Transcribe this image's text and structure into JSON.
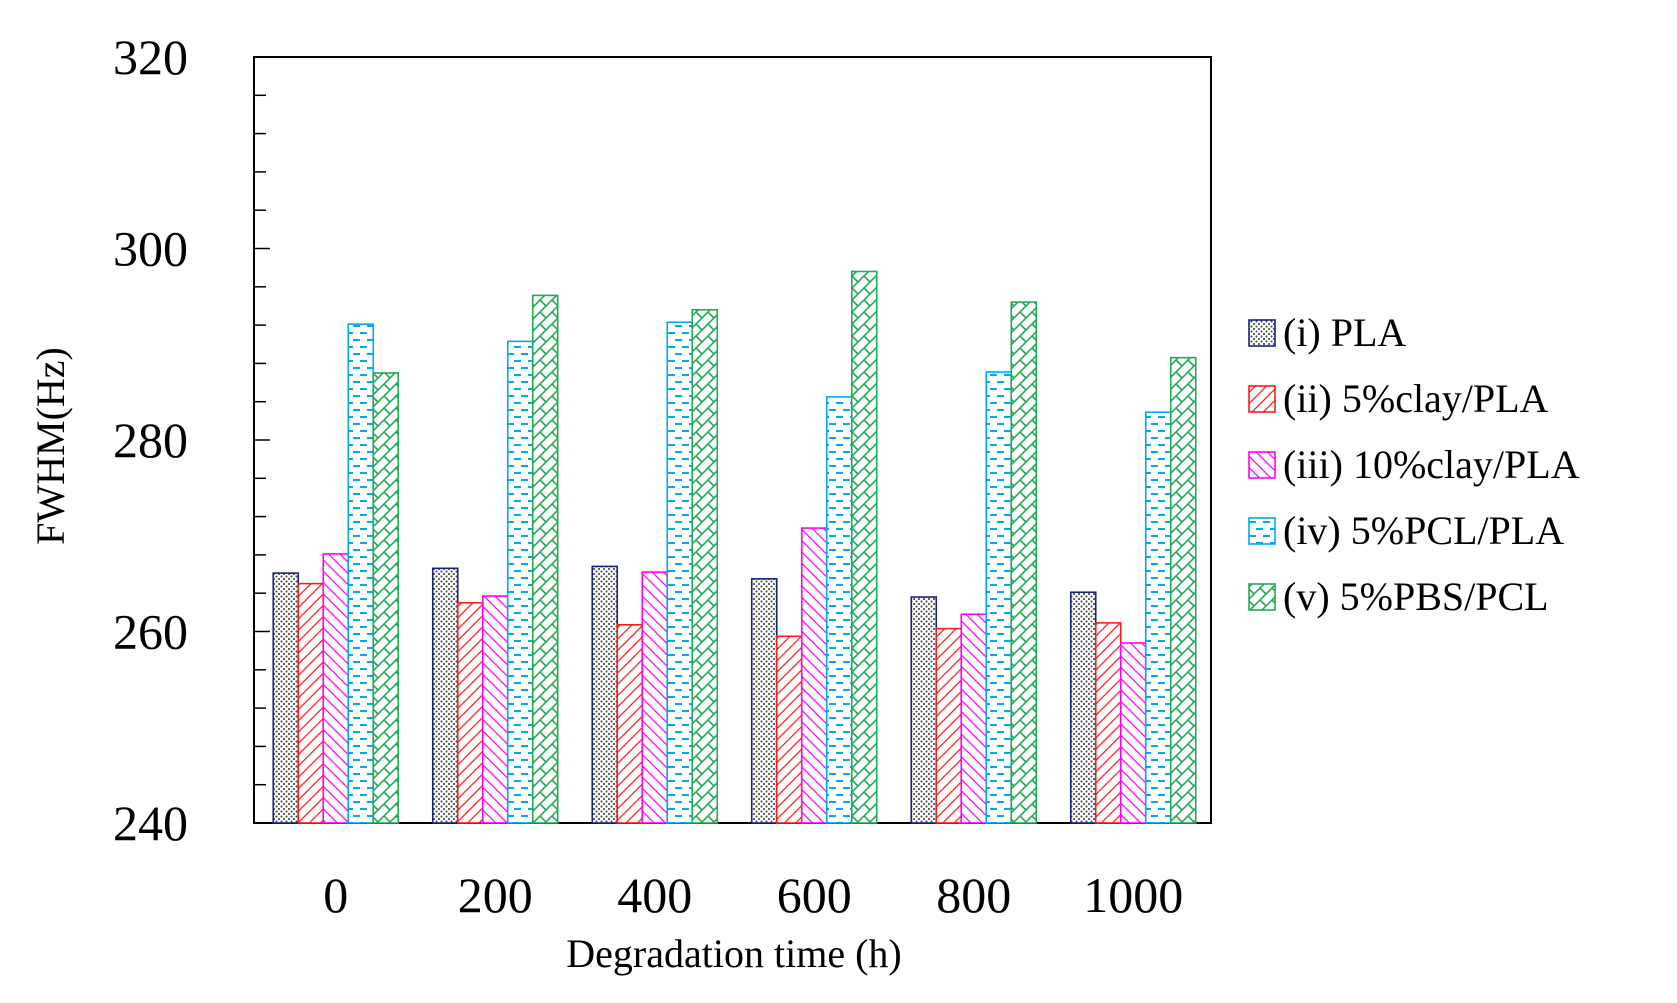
{
  "chart_data": {
    "type": "bar",
    "title": "",
    "xlabel": "Degradation time (h)",
    "ylabel": "FWHM(Hz)",
    "ylim": [
      240,
      320
    ],
    "yticks": [
      "240",
      "260",
      "280",
      "300",
      "320"
    ],
    "grid": false,
    "legend_position": "right",
    "categories": [
      "0",
      "200",
      "400",
      "600",
      "800",
      "1000"
    ],
    "series": [
      {
        "name": "(i) PLA",
        "color": "#1a237e",
        "pattern": "dots",
        "values": [
          266.1,
          266.6,
          266.8,
          265.5,
          263.6,
          264.1
        ]
      },
      {
        "name": "(ii) 5%clay/PLA",
        "color": "#ff1a1a",
        "pattern": "diagonal-right",
        "values": [
          265.0,
          263.0,
          260.7,
          259.5,
          260.3,
          260.9
        ]
      },
      {
        "name": "(iii) 10%clay/PLA",
        "color": "#ff00ff",
        "pattern": "diagonal-left",
        "values": [
          268.1,
          263.7,
          266.2,
          270.8,
          261.8,
          258.8
        ]
      },
      {
        "name": "(iv) 5%PCL/PLA",
        "color": "#00aaee",
        "pattern": "dashes",
        "values": [
          292.1,
          290.3,
          292.3,
          284.5,
          287.1,
          282.9
        ]
      },
      {
        "name": "(v) 5%PBS/PCL",
        "color": "#22aa55",
        "pattern": "crosshatch",
        "values": [
          287.0,
          295.1,
          293.6,
          297.6,
          294.4,
          288.6
        ]
      }
    ]
  }
}
